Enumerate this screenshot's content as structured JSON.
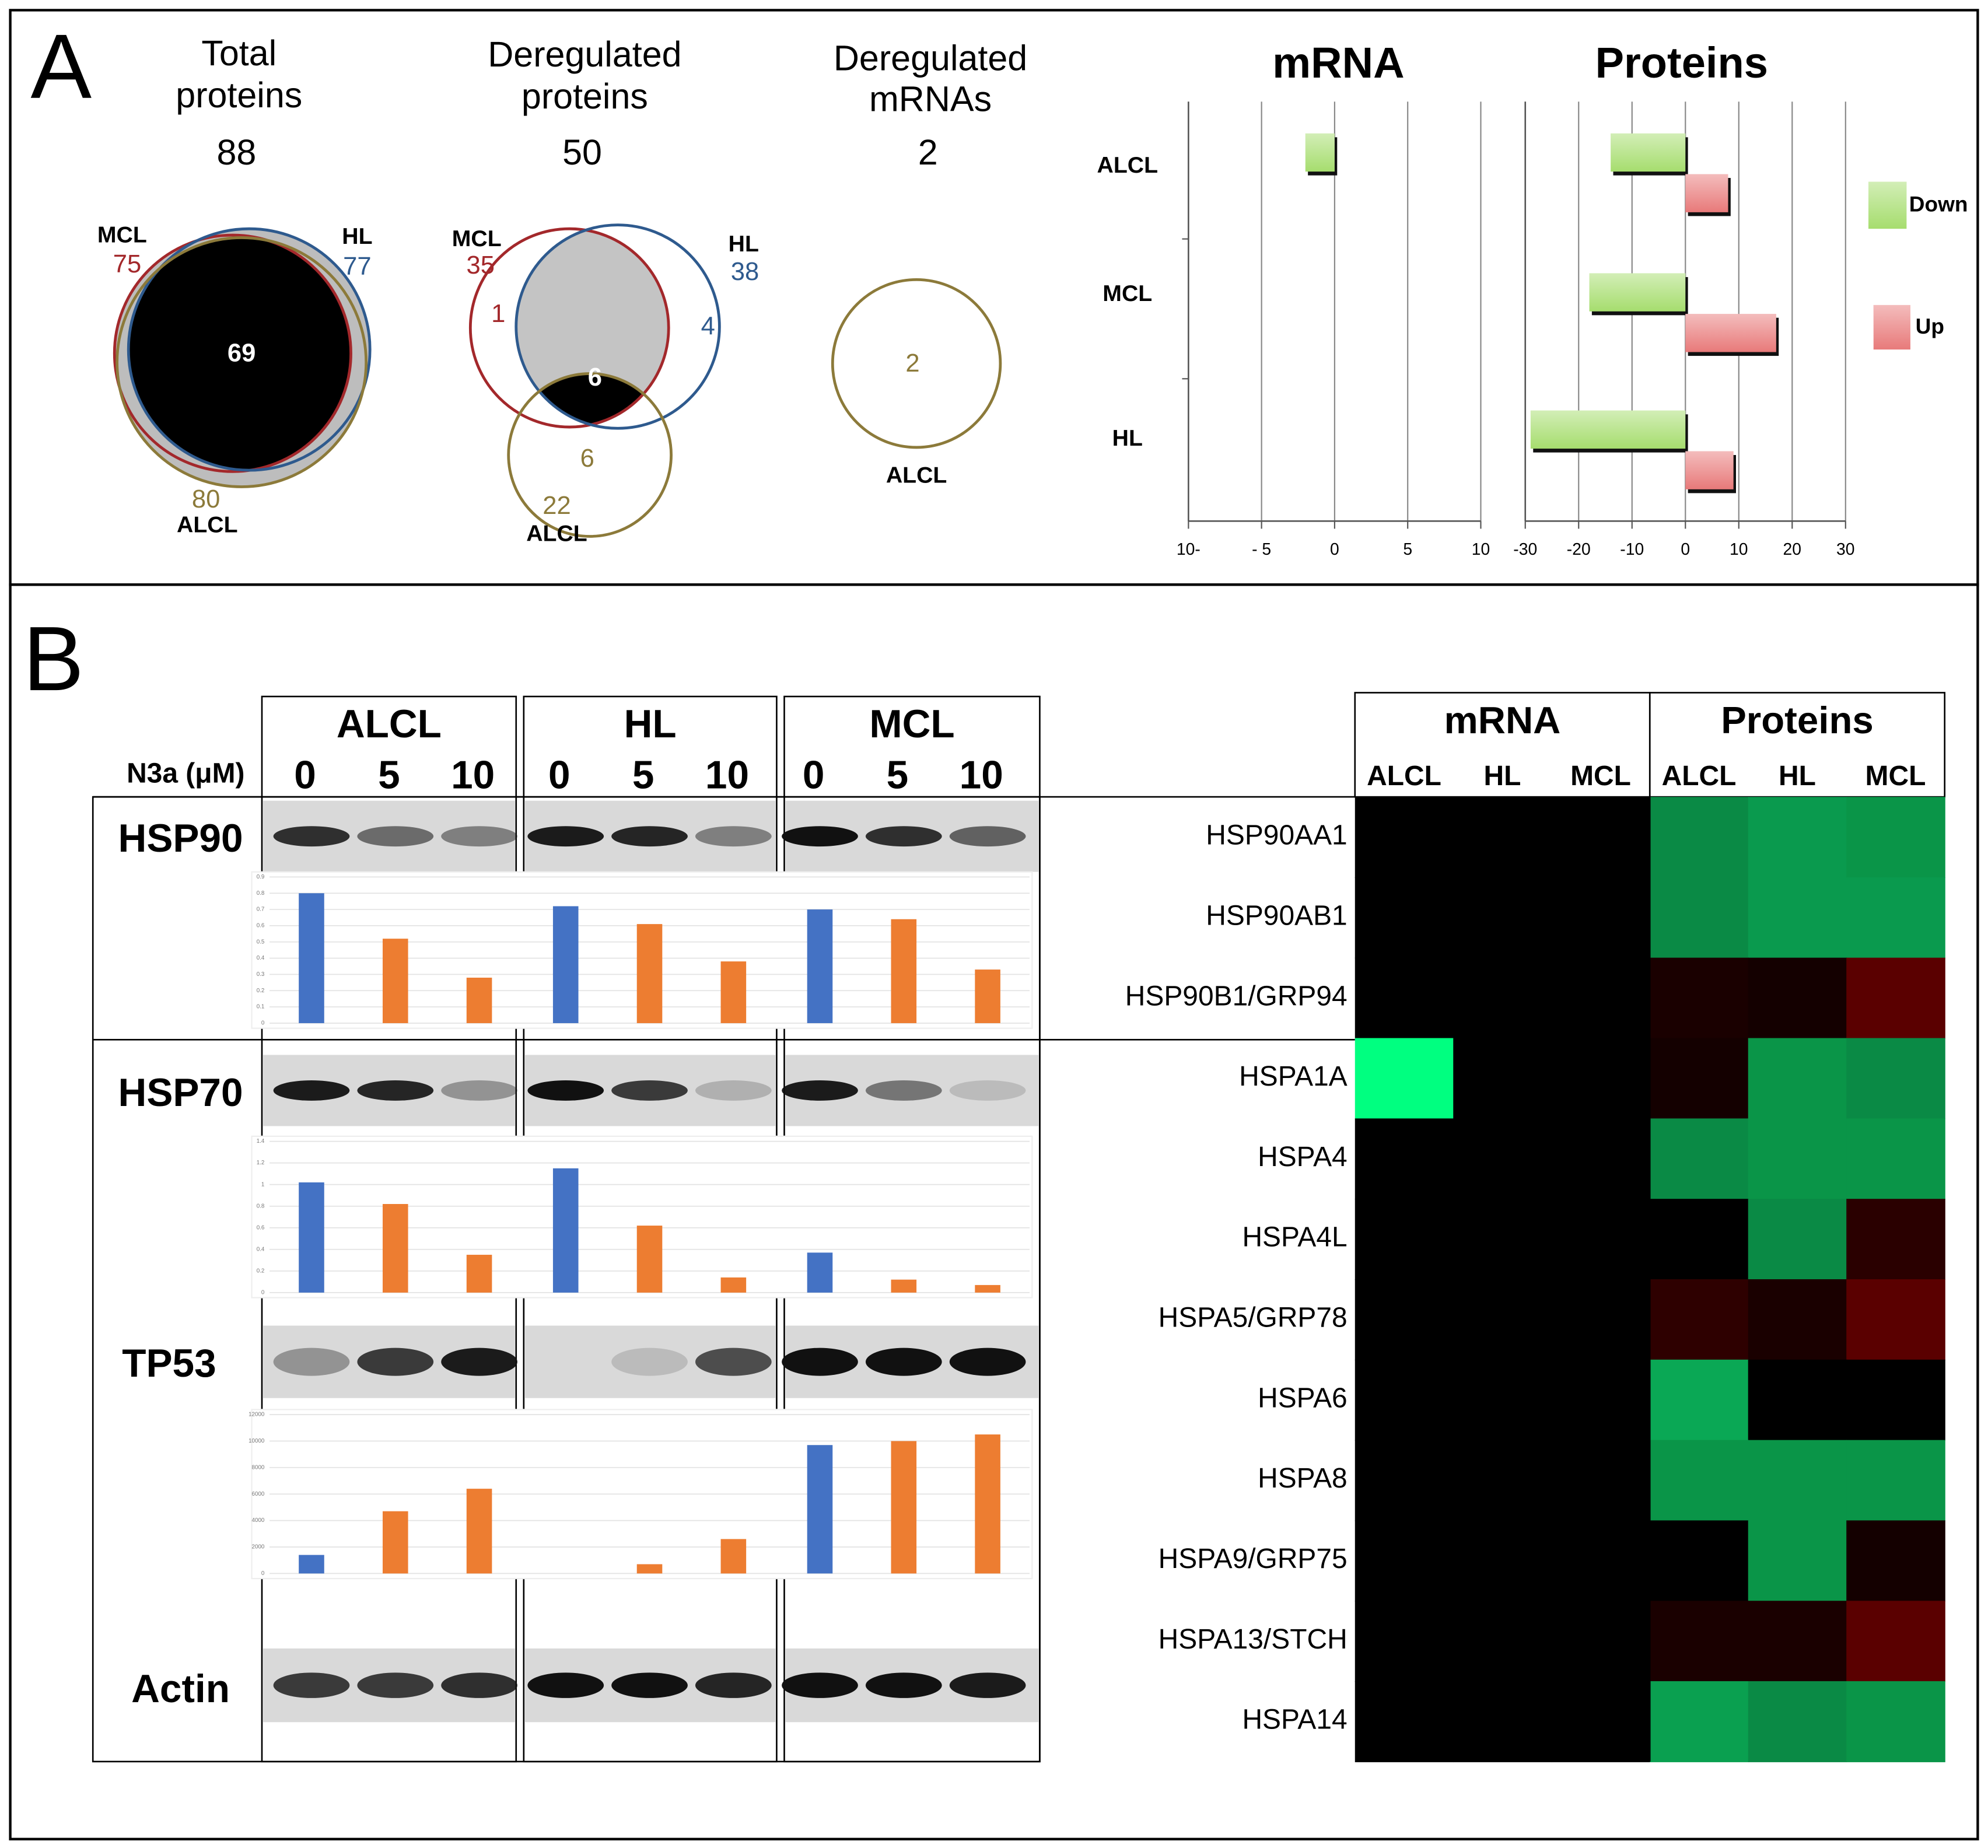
{
  "panel_a": {
    "label": "A",
    "venns": [
      {
        "title": [
          "Total",
          "proteins"
        ],
        "total": 88,
        "sets": [
          {
            "name": "MCL",
            "count": 75,
            "color": "#a3282b"
          },
          {
            "name": "HL",
            "count": 77,
            "color": "#2e5a8e"
          },
          {
            "name": "ALCL",
            "count": 80,
            "color": "#8c7a3a"
          }
        ],
        "regions": [
          {
            "value": 69,
            "color": "#ffffff"
          }
        ]
      },
      {
        "title": [
          "Deregulated",
          "proteins"
        ],
        "total": 50,
        "sets": [
          {
            "name": "MCL",
            "count": 35,
            "color": "#a3282b"
          },
          {
            "name": "HL",
            "count": 38,
            "color": "#2e5a8e"
          },
          {
            "name": "ALCL",
            "count": 22,
            "color": "#8c7a3a"
          }
        ],
        "regions": [
          {
            "value": 1,
            "color": "#a3282b"
          },
          {
            "value": 4,
            "color": "#2e5a8e"
          },
          {
            "value": 6,
            "color": "#ffffff"
          },
          {
            "value": 6,
            "color": "#8c7a3a"
          }
        ]
      },
      {
        "title": [
          "Deregulated",
          "mRNAs"
        ],
        "total": 2,
        "sets": [
          {
            "name": "ALCL",
            "color": "#8c7a3a"
          }
        ],
        "regions": [
          {
            "value": 2,
            "color": "#8c7a3a"
          }
        ]
      }
    ],
    "bar_charts": {
      "categories": [
        "ALCL",
        "MCL",
        "HL"
      ],
      "legend_corner": "right",
      "mrna": {
        "type": "bar",
        "title": "mRNA",
        "values": [
          -2,
          0,
          0
        ],
        "color": "#a6dd6e",
        "xlim": [
          -10,
          10
        ],
        "xticks": [
          {
            "value": -10,
            "label": "10-"
          },
          {
            "value": -5,
            "label": "- 5"
          },
          0,
          5,
          10
        ]
      },
      "proteins": {
        "type": "bar",
        "title": "Proteins",
        "series": [
          {
            "name": "Down",
            "color": "#a6dd6e",
            "values": [
              -14,
              -18,
              -29
            ]
          },
          {
            "name": "Up",
            "color": "#e87a7a",
            "values": [
              8,
              17,
              9
            ]
          }
        ],
        "xlim": [
          -30,
          30
        ],
        "xticks": [
          -30,
          -20,
          -10,
          0,
          10,
          20,
          30
        ]
      }
    }
  },
  "panel_b": {
    "label": "B",
    "blots": {
      "dose_label": "N3a (μM)",
      "groups": [
        {
          "name": "ALCL",
          "doses": [
            0,
            5,
            10
          ]
        },
        {
          "name": "HL",
          "doses": [
            0,
            5,
            10
          ]
        },
        {
          "name": "MCL",
          "doses": [
            0,
            5,
            10
          ]
        }
      ],
      "control_color": "#4472c4",
      "treated_color": "#ed7d31",
      "proteins": [
        {
          "name": "HSP90",
          "ylim": [
            0,
            0.9
          ],
          "yticks": [
            0,
            0.1,
            0.2,
            0.3,
            0.4,
            0.5,
            0.6,
            0.7,
            0.8,
            0.9
          ],
          "values": [
            [
              0.8,
              0.52,
              0.28
            ],
            [
              0.72,
              0.61,
              0.38
            ],
            [
              0.7,
              0.64,
              0.33
            ]
          ]
        },
        {
          "name": "HSP70",
          "ylim": [
            0,
            1.4
          ],
          "yticks": [
            0,
            0.2,
            0.4,
            0.6,
            0.8,
            1,
            1.2,
            1.4
          ],
          "values": [
            [
              1.02,
              0.82,
              0.35
            ],
            [
              1.15,
              0.62,
              0.14
            ],
            [
              0.37,
              0.12,
              0.07
            ]
          ]
        },
        {
          "name": "TP53",
          "ylim": [
            0,
            12000
          ],
          "yticks": [
            0,
            2000,
            4000,
            6000,
            8000,
            10000,
            12000
          ],
          "values": [
            [
              1400,
              4700,
              6400
            ],
            [
              0,
              700,
              2600
            ],
            [
              9700,
              10000,
              10500
            ]
          ]
        },
        {
          "name": "Actin"
        }
      ]
    },
    "heatmap": {
      "sections": [
        {
          "title": "mRNA",
          "columns": [
            "ALCL",
            "HL",
            "MCL"
          ]
        },
        {
          "title": "Proteins",
          "columns": [
            "ALCL",
            "HL",
            "MCL"
          ]
        }
      ],
      "rows": [
        {
          "label": "HSP90AA1",
          "colors": [
            "#000000",
            "#000000",
            "#000000",
            "#0a8a45",
            "#0a9a4e",
            "#0a9548"
          ]
        },
        {
          "label": "HSP90AB1",
          "colors": [
            "#000000",
            "#000000",
            "#000000",
            "#0a8a45",
            "#0a9a4e",
            "#0a9a4e"
          ]
        },
        {
          "label": "HSP90B1/GRP94",
          "colors": [
            "#000000",
            "#000000",
            "#000000",
            "#1a0000",
            "#140000",
            "#5a0000"
          ]
        },
        {
          "label": "HSPA1A",
          "colors": [
            "#00ff80",
            "#000000",
            "#000000",
            "#140000",
            "#0a9548",
            "#0a8a45"
          ]
        },
        {
          "label": "HSPA4",
          "colors": [
            "#000000",
            "#000000",
            "#000000",
            "#0a8a45",
            "#0a9548",
            "#0a9548"
          ]
        },
        {
          "label": "HSPA4L",
          "colors": [
            "#000000",
            "#000000",
            "#000000",
            "#000000",
            "#0a8a45",
            "#2a0000"
          ]
        },
        {
          "label": "HSPA5/GRP78",
          "colors": [
            "#000000",
            "#000000",
            "#000000",
            "#2e0000",
            "#1a0000",
            "#5a0000"
          ]
        },
        {
          "label": "HSPA6",
          "colors": [
            "#000000",
            "#000000",
            "#000000",
            "#0aa855",
            "#000000",
            "#000000"
          ]
        },
        {
          "label": "HSPA8",
          "colors": [
            "#000000",
            "#000000",
            "#000000",
            "#0a9548",
            "#0a9548",
            "#0a9548"
          ]
        },
        {
          "label": "HSPA9/GRP75",
          "colors": [
            "#000000",
            "#000000",
            "#000000",
            "#000000",
            "#0a9548",
            "#140000"
          ]
        },
        {
          "label": "HSPA13/STCH",
          "colors": [
            "#000000",
            "#000000",
            "#000000",
            "#1a0000",
            "#1a0000",
            "#5a0000"
          ]
        },
        {
          "label": "HSPA14",
          "colors": [
            "#000000",
            "#000000",
            "#000000",
            "#0aa050",
            "#0a8a45",
            "#0a9548"
          ]
        }
      ]
    }
  }
}
